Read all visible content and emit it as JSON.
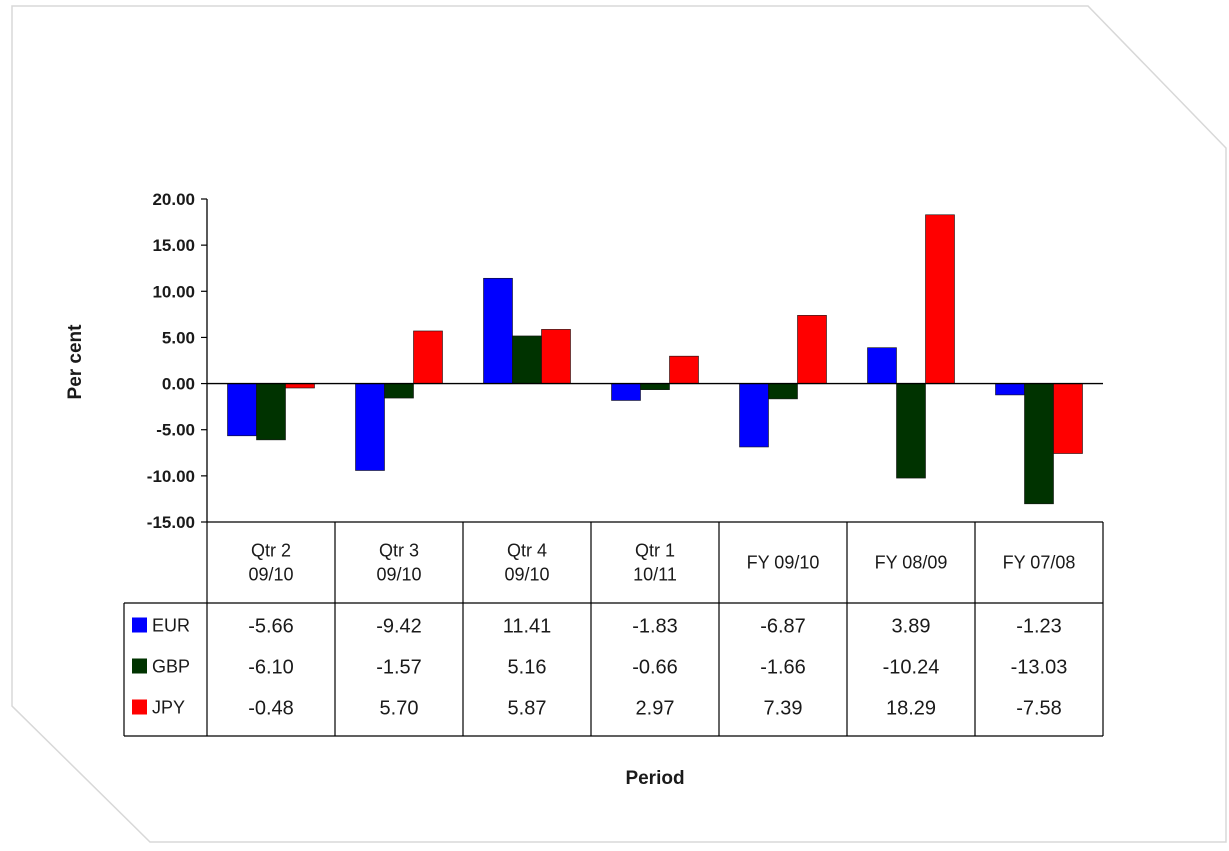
{
  "chart_data": {
    "type": "bar",
    "title": "",
    "xlabel": "Period",
    "ylabel": "Per cent",
    "ylim": [
      -15,
      20
    ],
    "yticks": [
      "20.00",
      "15.00",
      "10.00",
      "5.00",
      "0.00",
      "-5.00",
      "-10.00",
      "-15.00"
    ],
    "grid": false,
    "legend": "data-table",
    "categories": [
      [
        "Qtr 2",
        "09/10"
      ],
      [
        "Qtr 3",
        "09/10"
      ],
      [
        "Qtr 4",
        "09/10"
      ],
      [
        "Qtr 1",
        "10/11"
      ],
      [
        "FY 09/10"
      ],
      [
        "FY 08/09"
      ],
      [
        "FY 07/08"
      ]
    ],
    "series": [
      {
        "name": "EUR",
        "color": "#0000ff",
        "values": [
          -5.66,
          -9.42,
          11.41,
          -1.83,
          -6.87,
          3.89,
          -1.23
        ],
        "labels": [
          "-5.66",
          "-9.42",
          "11.41",
          "-1.83",
          "-6.87",
          "3.89",
          "-1.23"
        ]
      },
      {
        "name": "GBP",
        "color": "#003300",
        "values": [
          -6.1,
          -1.57,
          5.16,
          -0.66,
          -1.66,
          -10.24,
          -13.03
        ],
        "labels": [
          "-6.10",
          "-1.57",
          "5.16",
          "-0.66",
          "-1.66",
          "-10.24",
          "-13.03"
        ]
      },
      {
        "name": "JPY",
        "color": "#ff0000",
        "values": [
          -0.48,
          5.7,
          5.87,
          2.97,
          7.39,
          18.29,
          -7.58
        ],
        "labels": [
          "-0.48",
          "5.70",
          "5.87",
          "2.97",
          "7.39",
          "18.29",
          "-7.58"
        ]
      }
    ]
  }
}
